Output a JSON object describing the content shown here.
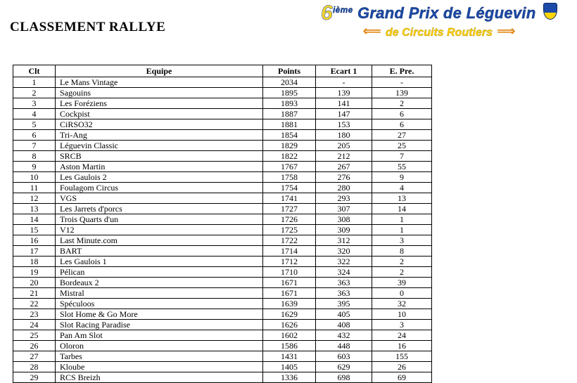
{
  "banner": {
    "line1_prefix_big": "6",
    "line1_prefix_small": "ième",
    "line1_main": "Grand Prix de Léguevin",
    "line2": "de Circuits Routiers"
  },
  "title": "CLASSEMENT RALLYE",
  "table": {
    "headers": {
      "clt": "Clt",
      "equipe": "Equipe",
      "points": "Points",
      "ecart1": "Ecart 1",
      "epre": "E. Pre."
    },
    "rows": [
      {
        "clt": "1",
        "equipe": "Le Mans Vintage",
        "points": "2034",
        "ecart1": "-",
        "epre": "-"
      },
      {
        "clt": "2",
        "equipe": "Sagouins",
        "points": "1895",
        "ecart1": "139",
        "epre": "139"
      },
      {
        "clt": "3",
        "equipe": "Les Foréziens",
        "points": "1893",
        "ecart1": "141",
        "epre": "2"
      },
      {
        "clt": "4",
        "equipe": "Cockpist",
        "points": "1887",
        "ecart1": "147",
        "epre": "6"
      },
      {
        "clt": "5",
        "equipe": "CiRSO32",
        "points": "1881",
        "ecart1": "153",
        "epre": "6"
      },
      {
        "clt": "6",
        "equipe": "Tri-Ang",
        "points": "1854",
        "ecart1": "180",
        "epre": "27"
      },
      {
        "clt": "7",
        "equipe": "Léguevin Classic",
        "points": "1829",
        "ecart1": "205",
        "epre": "25"
      },
      {
        "clt": "8",
        "equipe": "SRCB",
        "points": "1822",
        "ecart1": "212",
        "epre": "7"
      },
      {
        "clt": "9",
        "equipe": "Aston Martin",
        "points": "1767",
        "ecart1": "267",
        "epre": "55"
      },
      {
        "clt": "10",
        "equipe": "Les Gaulois 2",
        "points": "1758",
        "ecart1": "276",
        "epre": "9"
      },
      {
        "clt": "11",
        "equipe": "Foulagom Circus",
        "points": "1754",
        "ecart1": "280",
        "epre": "4"
      },
      {
        "clt": "12",
        "equipe": "VGS",
        "points": "1741",
        "ecart1": "293",
        "epre": "13"
      },
      {
        "clt": "13",
        "equipe": "Les Jarrets d'porcs",
        "points": "1727",
        "ecart1": "307",
        "epre": "14"
      },
      {
        "clt": "14",
        "equipe": "Trois Quarts d'un",
        "points": "1726",
        "ecart1": "308",
        "epre": "1"
      },
      {
        "clt": "15",
        "equipe": "V12",
        "points": "1725",
        "ecart1": "309",
        "epre": "1"
      },
      {
        "clt": "16",
        "equipe": "Last Minute.com",
        "points": "1722",
        "ecart1": "312",
        "epre": "3"
      },
      {
        "clt": "17",
        "equipe": "BART",
        "points": "1714",
        "ecart1": "320",
        "epre": "8"
      },
      {
        "clt": "18",
        "equipe": "Les Gaulois 1",
        "points": "1712",
        "ecart1": "322",
        "epre": "2"
      },
      {
        "clt": "19",
        "equipe": "Pélican",
        "points": "1710",
        "ecart1": "324",
        "epre": "2"
      },
      {
        "clt": "20",
        "equipe": "Bordeaux 2",
        "points": "1671",
        "ecart1": "363",
        "epre": "39"
      },
      {
        "clt": "21",
        "equipe": "Mistral",
        "points": "1671",
        "ecart1": "363",
        "epre": "0"
      },
      {
        "clt": "22",
        "equipe": "Spéculoos",
        "points": "1639",
        "ecart1": "395",
        "epre": "32"
      },
      {
        "clt": "23",
        "equipe": "Slot Home & Go More",
        "points": "1629",
        "ecart1": "405",
        "epre": "10"
      },
      {
        "clt": "24",
        "equipe": "Slot Racing Paradise",
        "points": "1626",
        "ecart1": "408",
        "epre": "3"
      },
      {
        "clt": "25",
        "equipe": "Pan Am Slot",
        "points": "1602",
        "ecart1": "432",
        "epre": "24"
      },
      {
        "clt": "26",
        "equipe": "Oloron",
        "points": "1586",
        "ecart1": "448",
        "epre": "16"
      },
      {
        "clt": "27",
        "equipe": "Tarbes",
        "points": "1431",
        "ecart1": "603",
        "epre": "155"
      },
      {
        "clt": "28",
        "equipe": "Kloube",
        "points": "1405",
        "ecart1": "629",
        "epre": "26"
      },
      {
        "clt": "29",
        "equipe": "RCS Breizh",
        "points": "1336",
        "ecart1": "698",
        "epre": "69"
      }
    ]
  }
}
